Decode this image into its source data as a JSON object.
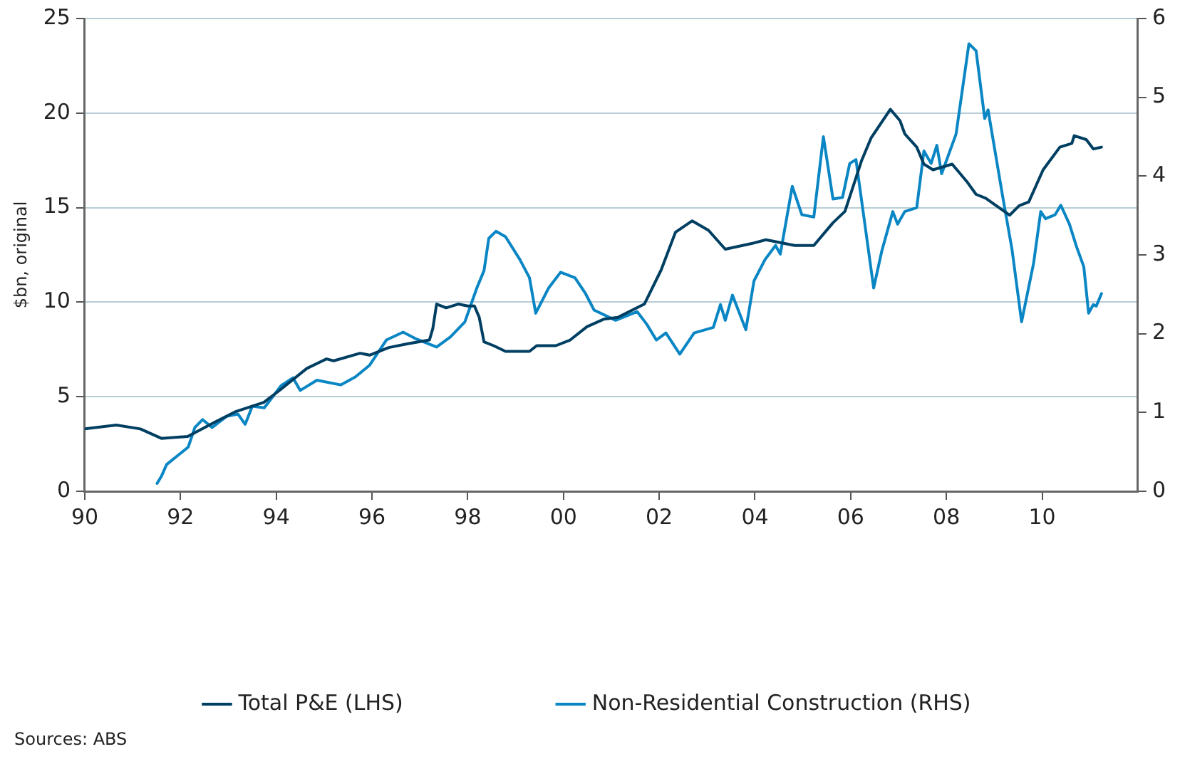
{
  "chart_data": {
    "type": "line",
    "ylabel": "$bn, original",
    "xlim": [
      1990,
      2012
    ],
    "xticks": [
      {
        "value": 1990,
        "label": "90"
      },
      {
        "value": 1992,
        "label": "92"
      },
      {
        "value": 1994,
        "label": "94"
      },
      {
        "value": 1996,
        "label": "96"
      },
      {
        "value": 1998,
        "label": "98"
      },
      {
        "value": 2000,
        "label": "00"
      },
      {
        "value": 2002,
        "label": "02"
      },
      {
        "value": 2004,
        "label": "04"
      },
      {
        "value": 2006,
        "label": "06"
      },
      {
        "value": 2008,
        "label": "08"
      },
      {
        "value": 2010,
        "label": "10"
      }
    ],
    "ylim": [
      0,
      25
    ],
    "yticks": [
      0,
      5,
      10,
      15,
      20,
      25
    ],
    "y2lim": [
      0,
      6
    ],
    "y2ticks": [
      0,
      1,
      2,
      3,
      4,
      5,
      6
    ],
    "grid": "y",
    "legend": "bottom",
    "annotations": [
      "Sources: ABS"
    ],
    "series": [
      {
        "name": "Total P&E (LHS)",
        "color": "#003f62",
        "x": [
          1990.0,
          1990.66,
          1991.16,
          1991.6,
          1992.15,
          1992.75,
          1993.14,
          1993.74,
          1994.05,
          1994.64,
          1995.05,
          1995.2,
          1995.75,
          1995.95,
          1996.35,
          1996.75,
          1997.2,
          1997.27,
          1997.35,
          1997.55,
          1997.8,
          1998.0,
          1998.14,
          1998.24,
          1998.34,
          1998.54,
          1998.79,
          1999.29,
          1999.44,
          1999.84,
          2000.14,
          2000.49,
          2000.84,
          2001.14,
          2001.69,
          2002.04,
          2002.34,
          2002.69,
          2003.03,
          2003.38,
          2003.93,
          2004.23,
          2004.83,
          2005.23,
          2005.63,
          2005.88,
          2006.23,
          2006.43,
          2006.83,
          2007.03,
          2007.13,
          2007.38,
          2007.53,
          2007.72,
          2008.12,
          2008.42,
          2008.62,
          2008.82,
          2009.32,
          2009.52,
          2009.72,
          2010.02,
          2010.37,
          2010.62,
          2010.67,
          2010.92,
          2011.07,
          2011.24
        ],
        "values": [
          3.3,
          3.5,
          3.3,
          2.8,
          2.9,
          3.7,
          4.2,
          4.7,
          5.3,
          6.5,
          7.0,
          6.9,
          7.3,
          7.2,
          7.6,
          7.8,
          8.0,
          8.6,
          9.9,
          9.7,
          9.9,
          9.8,
          9.8,
          9.2,
          7.9,
          7.7,
          7.4,
          7.4,
          7.7,
          7.7,
          8.0,
          8.7,
          9.1,
          9.2,
          9.9,
          11.7,
          13.7,
          14.3,
          13.8,
          12.8,
          13.1,
          13.3,
          13.0,
          13.0,
          14.2,
          14.8,
          17.5,
          18.7,
          20.2,
          19.6,
          18.9,
          18.2,
          17.3,
          17.0,
          17.3,
          16.4,
          15.7,
          15.5,
          14.6,
          15.1,
          15.3,
          17.0,
          18.2,
          18.4,
          18.8,
          18.6,
          18.1,
          18.2
        ]
      },
      {
        "name": "Non-Residential Construction (RHS)",
        "color": "#0a86c4",
        "axis": "y2",
        "x": [
          1991.51,
          1991.6,
          1991.71,
          1992.16,
          1992.3,
          1992.46,
          1992.66,
          1992.96,
          1993.2,
          1993.35,
          1993.5,
          1993.75,
          1994.1,
          1994.35,
          1994.5,
          1994.85,
          1995.35,
          1995.65,
          1995.95,
          1996.3,
          1996.65,
          1996.9,
          1997.35,
          1997.64,
          1997.94,
          1998.19,
          1998.34,
          1998.44,
          1998.59,
          1998.79,
          1999.09,
          1999.29,
          1999.42,
          1999.69,
          1999.94,
          2000.24,
          2000.46,
          2000.64,
          2001.09,
          2001.54,
          2001.74,
          2001.94,
          2002.14,
          2002.43,
          2002.73,
          2003.13,
          2003.28,
          2003.38,
          2003.53,
          2003.81,
          2003.98,
          2004.21,
          2004.43,
          2004.53,
          2004.78,
          2004.98,
          2005.23,
          2005.43,
          2005.63,
          2005.83,
          2005.98,
          2006.11,
          2006.48,
          2006.65,
          2006.88,
          2006.98,
          2007.13,
          2007.38,
          2007.53,
          2007.68,
          2007.8,
          2007.9,
          2008.2,
          2008.47,
          2008.62,
          2008.8,
          2008.87,
          2009.17,
          2009.37,
          2009.57,
          2009.82,
          2009.97,
          2010.07,
          2010.27,
          2010.39,
          2010.57,
          2010.72,
          2010.87,
          2010.97,
          2011.07,
          2011.13,
          2011.24
        ],
        "values": [
          0.1,
          0.19,
          0.34,
          0.56,
          0.81,
          0.91,
          0.81,
          0.95,
          0.98,
          0.85,
          1.08,
          1.06,
          1.34,
          1.44,
          1.28,
          1.41,
          1.35,
          1.45,
          1.6,
          1.92,
          2.02,
          1.94,
          1.83,
          1.96,
          2.15,
          2.58,
          2.8,
          3.21,
          3.3,
          3.23,
          2.94,
          2.71,
          2.26,
          2.58,
          2.78,
          2.71,
          2.51,
          2.3,
          2.17,
          2.28,
          2.12,
          1.92,
          2.01,
          1.74,
          2.01,
          2.08,
          2.37,
          2.17,
          2.49,
          2.05,
          2.67,
          2.94,
          3.12,
          3.01,
          3.87,
          3.51,
          3.48,
          4.5,
          3.71,
          3.73,
          4.16,
          4.21,
          2.58,
          3.05,
          3.55,
          3.39,
          3.55,
          3.6,
          4.32,
          4.16,
          4.39,
          4.03,
          4.53,
          5.68,
          5.59,
          4.73,
          4.84,
          3.76,
          3.07,
          2.15,
          2.89,
          3.55,
          3.46,
          3.51,
          3.63,
          3.39,
          3.1,
          2.85,
          2.26,
          2.37,
          2.35,
          2.51
        ]
      }
    ]
  }
}
